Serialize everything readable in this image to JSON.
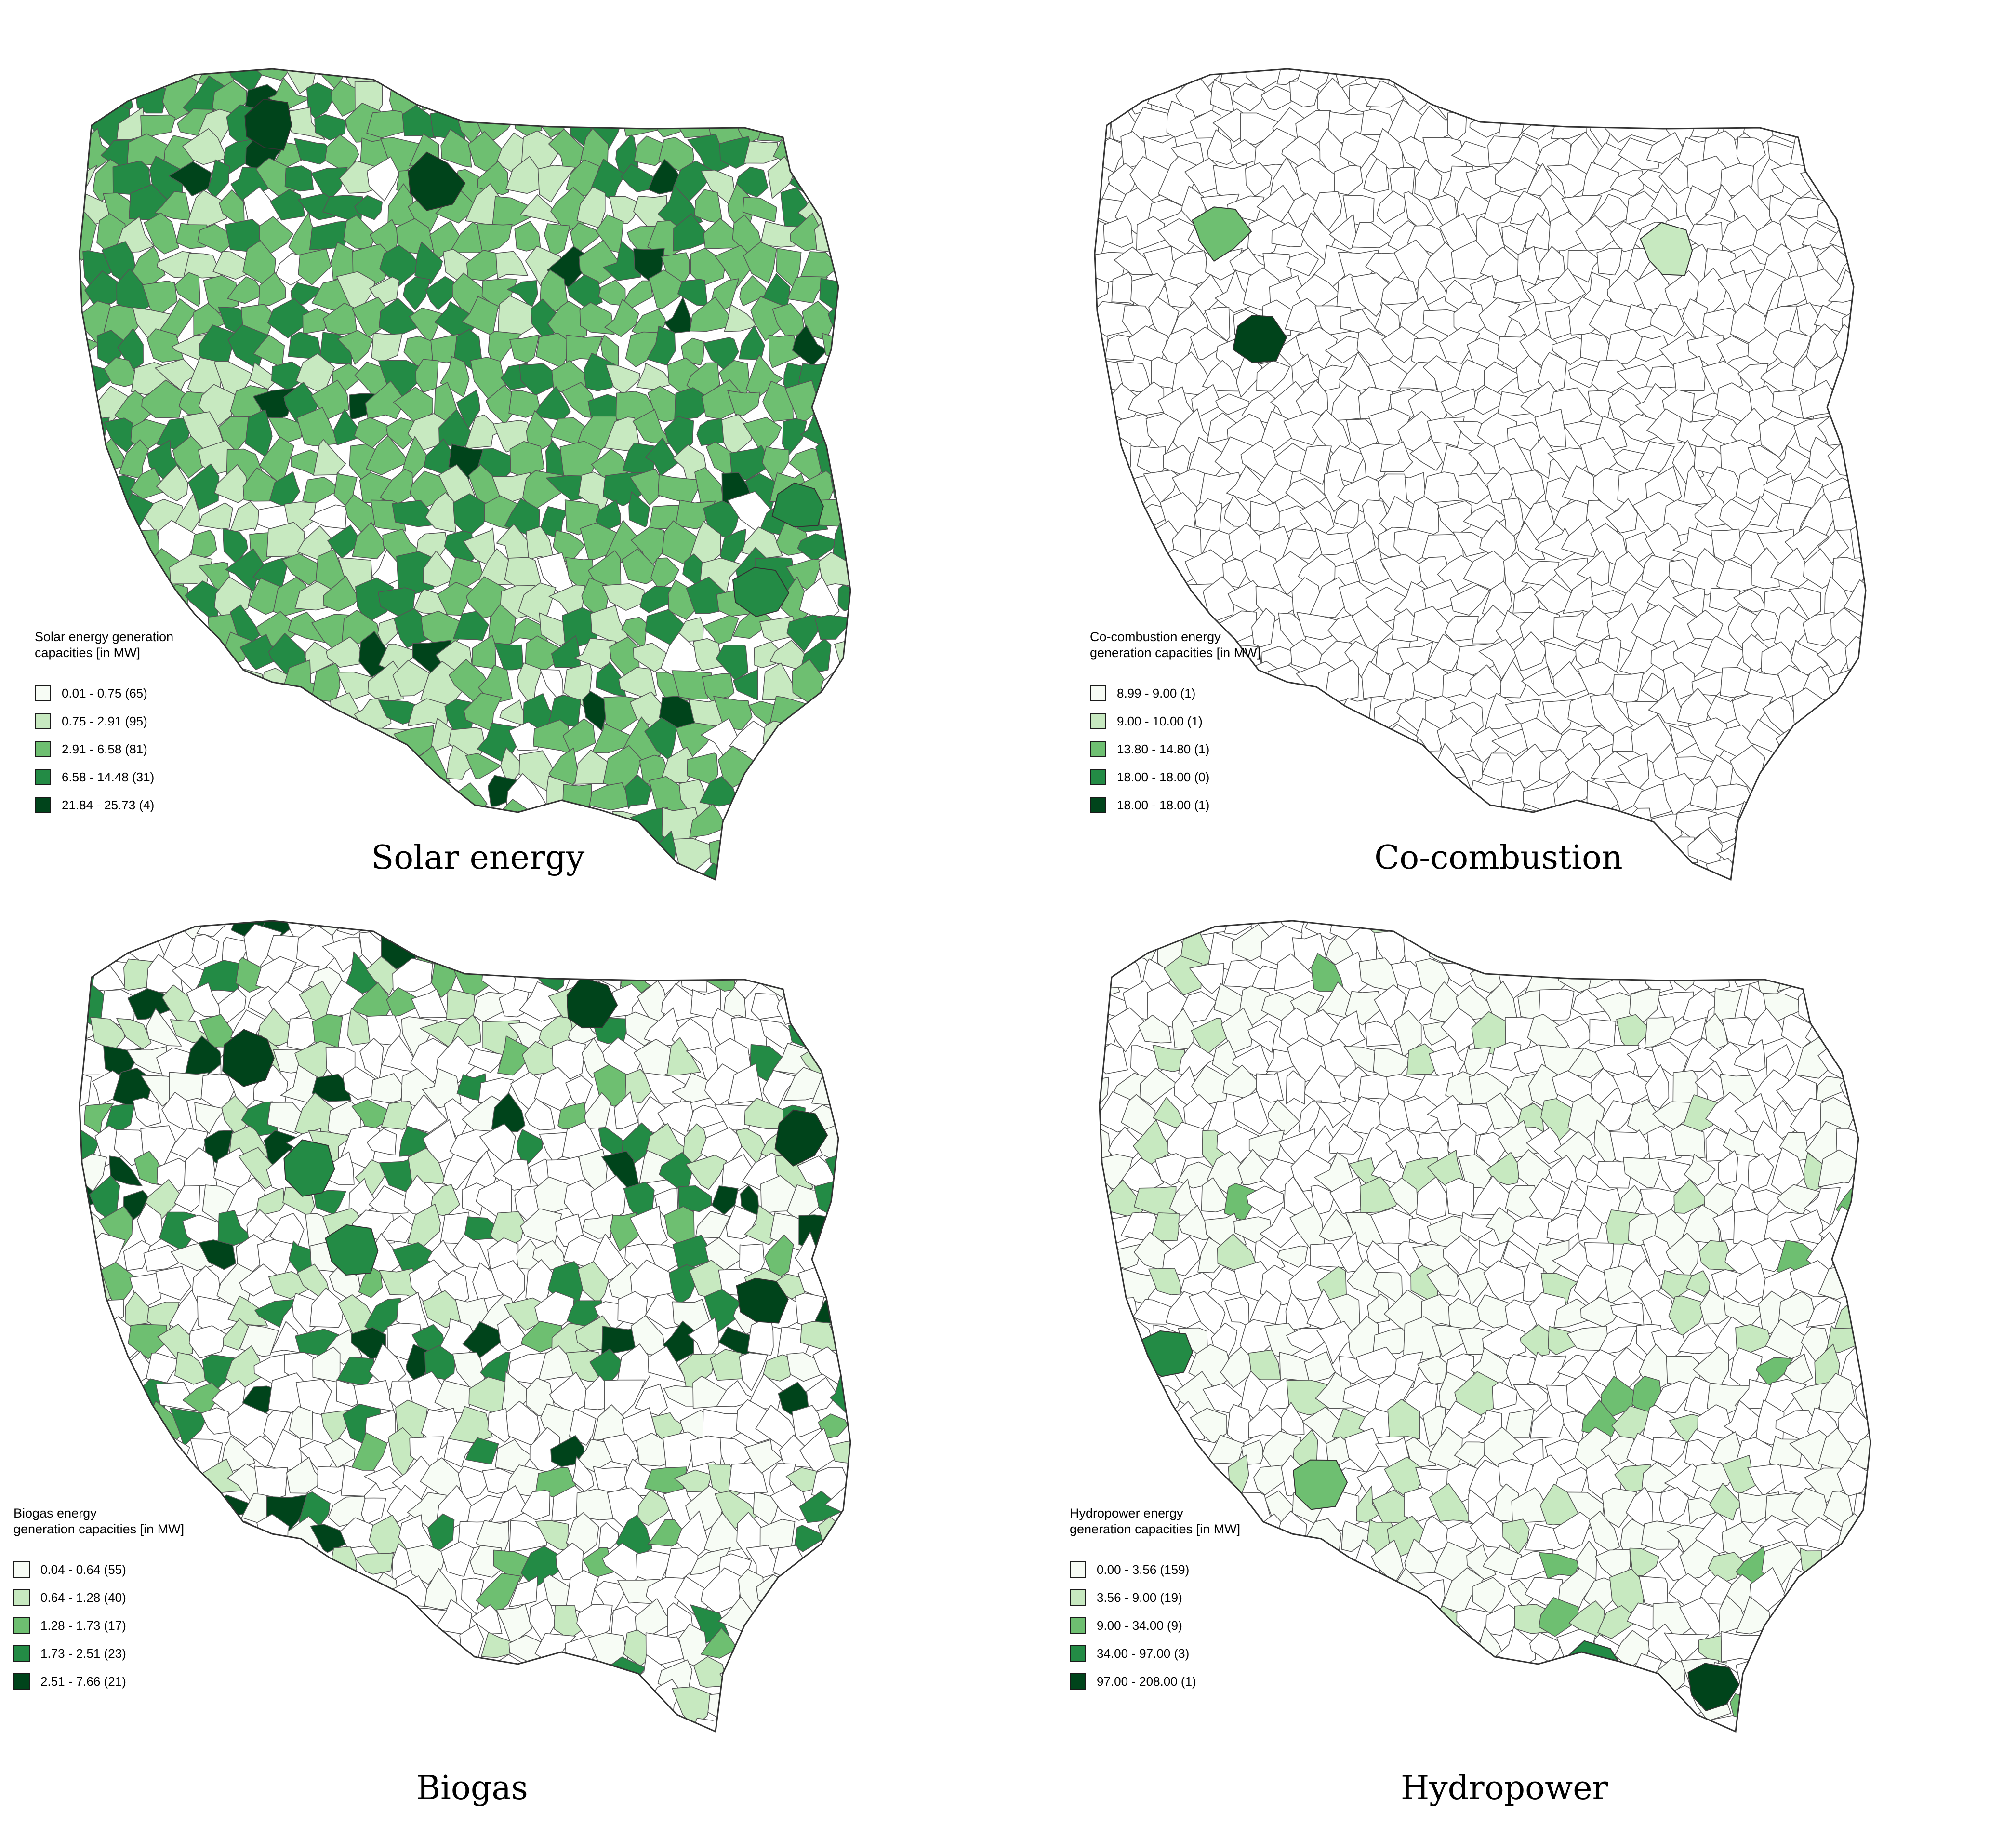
{
  "panels": [
    {
      "id": "solar",
      "caption": "Solar energy",
      "legend_title_lines": [
        "Solar energy generation",
        "capacities [in MW]"
      ],
      "legend": [
        {
          "label": "0.01 - 0.75 (65)",
          "color": "#f7fcf5"
        },
        {
          "label": "0.75 - 2.91 (95)",
          "color": "#c7e9c0"
        },
        {
          "label": "2.91 - 6.58 (81)",
          "color": "#6ebf71"
        },
        {
          "label": "6.58 - 14.48 (31)",
          "color": "#238b45"
        },
        {
          "label": "21.84 - 25.73 (4)",
          "color": "#00441b"
        }
      ],
      "colors": [
        "#ffffff",
        "#c7e9c0",
        "#6ebf71",
        "#238b45",
        "#00441b"
      ],
      "weights": [
        4,
        28,
        40,
        25,
        3
      ],
      "gradient": "north-west"
    },
    {
      "id": "cocombustion",
      "caption": "Co-combustion",
      "legend_title_lines": [
        "Co-combustion energy",
        "generation capacities [in MW]"
      ],
      "legend": [
        {
          "label": "8.99 - 9.00 (1)",
          "color": "#f7fcf5"
        },
        {
          "label": "9.00 - 10.00 (1)",
          "color": "#c7e9c0"
        },
        {
          "label": "13.80 - 14.80 (1)",
          "color": "#6ebf71"
        },
        {
          "label": "18.00 - 18.00 (0)",
          "color": "#238b45"
        },
        {
          "label": "18.00 - 18.00 (1)",
          "color": "#00441b"
        }
      ],
      "colors": [
        "#ffffff",
        "#c7e9c0",
        "#6ebf71",
        "#238b45",
        "#00441b"
      ],
      "weights": [
        100,
        0,
        0,
        0,
        0
      ],
      "gradient": "none"
    },
    {
      "id": "biogas",
      "caption": "Biogas",
      "legend_title_lines": [
        "Biogas energy",
        "generation capacities [in MW]"
      ],
      "legend": [
        {
          "label": "0.04 - 0.64 (55)",
          "color": "#f7fcf5"
        },
        {
          "label": "0.64 - 1.28 (40)",
          "color": "#c7e9c0"
        },
        {
          "label": "1.28 - 1.73 (17)",
          "color": "#6ebf71"
        },
        {
          "label": "1.73 - 2.51 (23)",
          "color": "#238b45"
        },
        {
          "label": "2.51 - 7.66 (21)",
          "color": "#00441b"
        }
      ],
      "colors": [
        "#ffffff",
        "#f7fcf5",
        "#c7e9c0",
        "#6ebf71",
        "#238b45",
        "#00441b"
      ],
      "weights": [
        48,
        18,
        15,
        7,
        7,
        5
      ],
      "gradient": "north"
    },
    {
      "id": "hydro",
      "caption": "Hydropower",
      "legend_title_lines": [
        "Hydropower energy",
        "generation capacities [in MW]"
      ],
      "legend": [
        {
          "label": "0.00 - 3.56 (159)",
          "color": "#f7fcf5"
        },
        {
          "label": "3.56 - 9.00 (19)",
          "color": "#c7e9c0"
        },
        {
          "label": "9.00 - 34.00 (9)",
          "color": "#6ebf71"
        },
        {
          "label": "34.00 - 97.00 (3)",
          "color": "#238b45"
        },
        {
          "label": "97.00 - 208.00 (1)",
          "color": "#00441b"
        }
      ],
      "colors": [
        "#ffffff",
        "#f7fcf5",
        "#c7e9c0",
        "#6ebf71"
      ],
      "weights": [
        55,
        35,
        8,
        2
      ],
      "gradient": "south"
    }
  ]
}
